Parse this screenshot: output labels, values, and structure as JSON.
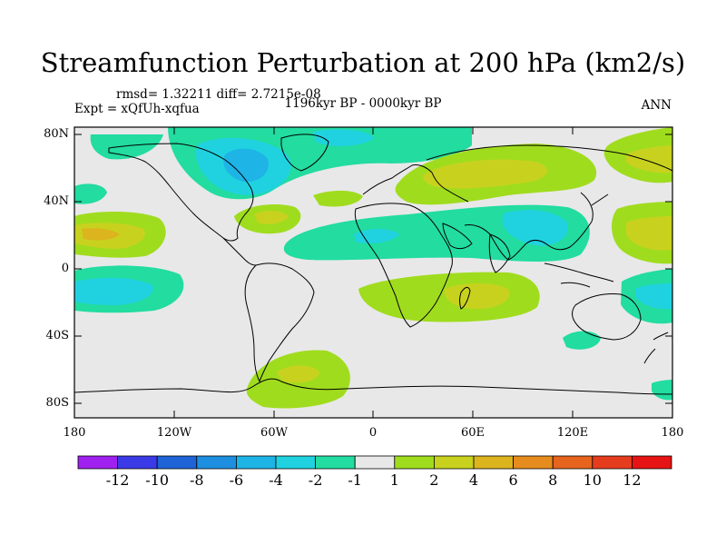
{
  "title": "Streamfunction Perturbation at 200 hPa (km2/s)",
  "stats_line": "rmsd= 1.32211 diff= 2.7215e-08",
  "expt_line": "Expt = xQfUh-xqfua",
  "period": "1196kyr BP - 0000kyr BP",
  "season": "ANN",
  "lat_labels": [
    "80N",
    "40N",
    "0",
    "40S",
    "80S"
  ],
  "lon_labels": [
    "180",
    "120W",
    "60W",
    "0",
    "60E",
    "120E",
    "180"
  ],
  "colorbar": {
    "labels": [
      "-12",
      "-10",
      "-8",
      "-6",
      "-4",
      "-2",
      "-1",
      "1",
      "2",
      "4",
      "6",
      "8",
      "10",
      "12"
    ],
    "colors": [
      "#a020f0",
      "#3a3ae6",
      "#1e64d7",
      "#1e8fe0",
      "#1eb4e6",
      "#20d2e0",
      "#22dca0",
      "#e8e8e8",
      "#a0dc1e",
      "#c8d21e",
      "#dcb41e",
      "#e68c1e",
      "#e6641e",
      "#e63c1e",
      "#e61414"
    ]
  },
  "chart_data": {
    "type": "contour-map",
    "title": "Streamfunction Perturbation at 200 hPa (km2/s)",
    "projection": "cylindrical-equidistant",
    "lon_range": [
      -180,
      180
    ],
    "lat_range": [
      -90,
      90
    ],
    "levels": [
      -12,
      -10,
      -8,
      -6,
      -4,
      -2,
      -1,
      1,
      2,
      4,
      6,
      8,
      10,
      12
    ],
    "features": [
      {
        "name": "north-america-low",
        "lon": -78,
        "lat": 55,
        "value": -3
      },
      {
        "name": "arctic-low",
        "lon": -20,
        "lat": 74,
        "value": -2
      },
      {
        "name": "eurasia-high",
        "lon": 45,
        "lat": 55,
        "value": 2
      },
      {
        "name": "south-asia-low",
        "lon": 95,
        "lat": 22,
        "value": -2
      },
      {
        "name": "north-pacific-high",
        "lon": -160,
        "lat": 20,
        "value": 2
      },
      {
        "name": "south-pacific-low",
        "lon": -150,
        "lat": -12,
        "value": -2
      },
      {
        "name": "atlantic-high",
        "lon": -60,
        "lat": 28,
        "value": 2
      },
      {
        "name": "south-africa-high",
        "lon": 55,
        "lat": -20,
        "value": 2
      },
      {
        "name": "south-atlantic-high",
        "lon": -45,
        "lat": -72,
        "value": 1
      },
      {
        "name": "australia-low",
        "lon": 160,
        "lat": -20,
        "value": -2
      }
    ]
  }
}
